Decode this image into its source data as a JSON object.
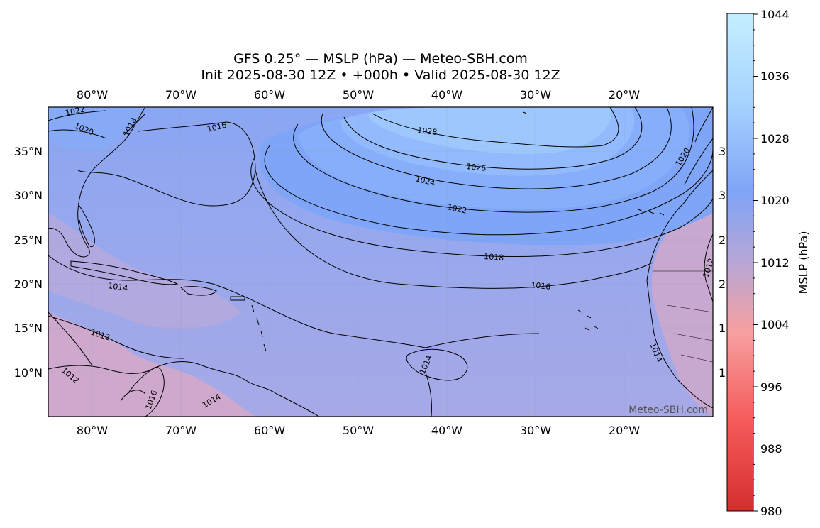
{
  "title": {
    "line1": "GFS 0.25° — MSLP (hPa) — Meteo-SBH.com",
    "line2": "Init 2025-08-30 12Z • +000h • Valid 2025-08-30 12Z"
  },
  "map": {
    "lon_ticks": [
      "80°W",
      "70°W",
      "60°W",
      "50°W",
      "40°W",
      "30°W",
      "20°W"
    ],
    "lat_ticks": [
      "35°N",
      "30°N",
      "25°N",
      "20°N",
      "15°N",
      "10°N"
    ],
    "right_edge_partial_labels": [
      "3",
      "3",
      "2",
      "2",
      "1",
      "1"
    ],
    "watermark": "Meteo-SBH.com",
    "isobars": [
      {
        "label": "1028",
        "hPa": 1028
      },
      {
        "label": "1026",
        "hPa": 1026
      },
      {
        "label": "1024",
        "hPa": 1024
      },
      {
        "label": "1022",
        "hPa": 1022
      },
      {
        "label": "1020",
        "hPa": 1020
      },
      {
        "label": "1018",
        "hPa": 1018
      },
      {
        "label": "1016",
        "hPa": 1016
      },
      {
        "label": "1014",
        "hPa": 1014
      },
      {
        "label": "1012",
        "hPa": 1012
      }
    ],
    "extra_contour_labels": [
      "1022",
      "1020",
      "1016",
      "1014",
      "1012",
      "1012",
      "1014",
      "1014",
      "1018",
      "1016"
    ]
  },
  "colorbar": {
    "label": "MSLP (hPa)",
    "ticks": [
      "1044",
      "1036",
      "1028",
      "1020",
      "1012",
      "1004",
      "996",
      "988",
      "980"
    ],
    "min": 980,
    "max": 1044,
    "colors": {
      "low": "#d42f2f",
      "mid_low": "#f6a3a3",
      "mid": "#b0a8d8",
      "mid_high": "#7fa6f6",
      "high": "#bfeaff"
    }
  }
}
